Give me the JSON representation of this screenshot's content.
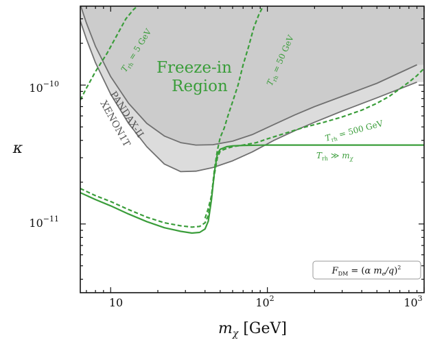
{
  "chart_data": {
    "type": "line",
    "xlabel": "m_χ [GeV]",
    "ylabel": "κ",
    "x_scale": "log",
    "y_scale": "log",
    "xlim": [
      6.4,
      1000
    ],
    "ylim": [
      3.2e-12,
      3.7e-10
    ],
    "x_ticks": [
      {
        "value": 10,
        "label": "10"
      },
      {
        "value": 100,
        "label": "10^2"
      },
      {
        "value": 1000,
        "label": "10^3"
      }
    ],
    "y_ticks": [
      {
        "value": 1e-11,
        "label": "10^-11"
      },
      {
        "value": 1e-10,
        "label": "10^-10"
      }
    ],
    "series": [
      {
        "name": "XENON1T",
        "style": "solid",
        "color": "#707070",
        "fill": "#dcdcdc",
        "x": [
          6.4,
          7,
          8,
          10,
          13,
          17,
          22,
          28,
          35,
          45,
          60,
          80,
          110,
          150,
          200,
          300,
          500,
          900
        ],
        "y": [
          2.9e-10,
          2.15e-10,
          1.45e-10,
          8.6e-11,
          5.3e-11,
          3.6e-11,
          2.7e-11,
          2.38e-11,
          2.4e-11,
          2.55e-11,
          2.85e-11,
          3.3e-11,
          4e-11,
          4.7e-11,
          5.4e-11,
          6.5e-11,
          8.1e-11,
          1.05e-10
        ]
      },
      {
        "name": "PANDAX-II",
        "style": "solid",
        "color": "#707070",
        "fill": "#cccccc",
        "x": [
          6.4,
          7,
          8,
          10,
          13,
          17,
          22,
          28,
          35,
          45,
          60,
          80,
          110,
          150,
          200,
          300,
          500,
          900
        ],
        "y": [
          3.8e-10,
          2.8e-10,
          1.9e-10,
          1.15e-10,
          7.4e-11,
          5.3e-11,
          4.3e-11,
          3.85e-11,
          3.7e-11,
          3.72e-11,
          3.95e-11,
          4.4e-11,
          5.2e-11,
          6.1e-11,
          7e-11,
          8.3e-11,
          1.03e-10,
          1.4e-10
        ]
      },
      {
        "name": "T_rh ≫ m_χ",
        "style": "solid",
        "color": "#3a9d3a",
        "x": [
          6.4,
          8,
          10,
          13,
          17,
          22,
          28,
          33,
          37,
          40,
          42,
          44,
          46,
          48,
          50,
          55,
          60,
          70,
          100,
          200,
          500,
          1000
        ],
        "y": [
          1.68e-11,
          1.5e-11,
          1.35e-11,
          1.18e-11,
          1.04e-11,
          9.4e-12,
          8.85e-12,
          8.6e-12,
          8.7e-12,
          9.2e-12,
          1.05e-11,
          1.5e-11,
          2.4e-11,
          3.2e-11,
          3.45e-11,
          3.6e-11,
          3.65e-11,
          3.68e-11,
          3.7e-11,
          3.7e-11,
          3.7e-11,
          3.7e-11
        ]
      },
      {
        "name": "T_rh = 5 GeV",
        "style": "dashed",
        "color": "#3a9d3a",
        "x": [
          6.4,
          7,
          8,
          9.5,
          11,
          12.5,
          14,
          16
        ],
        "y": [
          7.8e-11,
          9.5e-11,
          1.25e-10,
          1.7e-10,
          2.3e-10,
          3e-10,
          3.5e-10,
          4e-10
        ]
      },
      {
        "name": "T_rh = 50 GeV",
        "style": "dashed",
        "color": "#3a9d3a",
        "x": [
          6.4,
          8,
          10,
          13,
          17,
          22,
          28,
          33,
          37,
          40,
          42,
          44,
          46,
          48,
          50,
          53,
          56,
          60,
          65,
          70,
          76,
          82,
          88,
          95
        ],
        "y": [
          1.8e-11,
          1.6e-11,
          1.45e-11,
          1.27e-11,
          1.12e-11,
          1.02e-11,
          9.7e-12,
          9.5e-12,
          9.6e-12,
          1.02e-11,
          1.15e-11,
          1.6e-11,
          2.5e-11,
          3.4e-11,
          4.2e-11,
          4.9e-11,
          6e-11,
          7.6e-11,
          1e-10,
          1.4e-10,
          1.9e-10,
          2.6e-10,
          3.2e-10,
          3.8e-10
        ]
      },
      {
        "name": "T_rh = 500 GeV",
        "style": "dashed",
        "color": "#3a9d3a",
        "x": [
          40,
          42,
          44,
          46,
          48,
          50,
          55,
          60,
          70,
          85,
          100,
          130,
          170,
          230,
          300,
          400,
          500,
          600,
          700,
          800,
          900,
          1000
        ],
        "y": [
          1.1e-11,
          1.3e-11,
          1.6e-11,
          2.3e-11,
          3e-11,
          3.35e-11,
          3.5e-11,
          3.6e-11,
          3.7e-11,
          3.85e-11,
          4.1e-11,
          4.5e-11,
          4.95e-11,
          5.4e-11,
          5.9e-11,
          6.6e-11,
          7.4e-11,
          8.3e-11,
          9.4e-11,
          1.05e-10,
          1.17e-10,
          1.32e-10
        ]
      }
    ],
    "annotations": {
      "freeze_in_1": "Freeze-in",
      "freeze_in_2": "Region",
      "pandax": "PANDAX-II",
      "xenon": "XENON1T",
      "trh5": "T_rh = 5 GeV",
      "trh50": "T_rh = 50 GeV",
      "trh500": "T_rh = 500 GeV",
      "trh_inf": "T_rh ≫ m_χ",
      "legend_box": "F_DM = (α m_e / q)^2"
    },
    "colors": {
      "green": "#3a9d3a",
      "grey_line": "#707070",
      "fill_light": "#dcdcdc",
      "fill_dark": "#cccccc"
    }
  }
}
